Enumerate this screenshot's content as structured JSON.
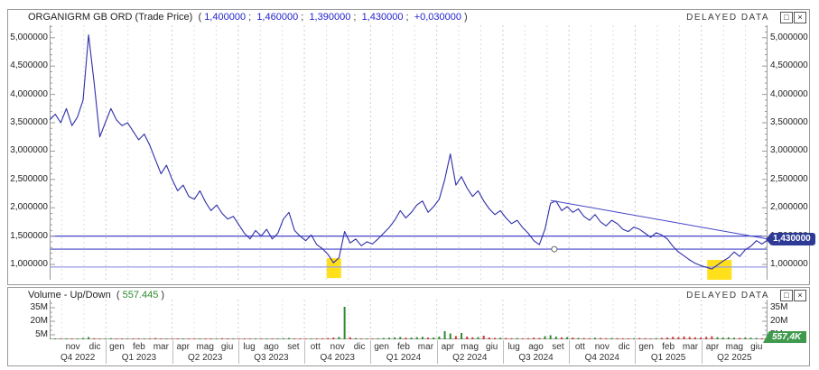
{
  "price_panel": {
    "title": "ORGANIGRM GB ORD (Trade Price)",
    "quote": {
      "open": "(",
      "close": ")",
      "separator": ";",
      "values": [
        "1,400000",
        "1,460000",
        "1,390000",
        "1,430000",
        "+0,030000"
      ]
    },
    "delayed_label": "DELAYED DATA",
    "buttons": {
      "restore": "□",
      "close": "×"
    },
    "y_axis_labels": [
      {
        "value": 5.0,
        "label": "5,000000"
      },
      {
        "value": 4.5,
        "label": "4,500000"
      },
      {
        "value": 4.0,
        "label": "4,000000"
      },
      {
        "value": 3.5,
        "label": "3,500000"
      },
      {
        "value": 3.0,
        "label": "3,000000"
      },
      {
        "value": 2.5,
        "label": "2,500000"
      },
      {
        "value": 2.0,
        "label": "2,000000"
      },
      {
        "value": 1.5,
        "label": "1,500000"
      },
      {
        "value": 1.0,
        "label": "1,000000"
      }
    ],
    "last_price_tag": "1,430000"
  },
  "volume_panel": {
    "title": "Volume - Up/Down",
    "open": "(",
    "value": "557.445",
    "close": ")",
    "delayed_label": "DELAYED DATA",
    "buttons": {
      "restore": "□",
      "close": "×"
    },
    "y_axis_labels": [
      {
        "value": 35,
        "label": "35M"
      },
      {
        "value": 20,
        "label": "20M"
      },
      {
        "value": 5,
        "label": "5M"
      }
    ],
    "last_volume_tag": "557,4K"
  },
  "x_axis": {
    "months": [
      "nov",
      "dic",
      "gen",
      "feb",
      "mar",
      "apr",
      "mag",
      "giu",
      "lug",
      "ago",
      "set",
      "ott",
      "nov",
      "dic",
      "gen",
      "feb",
      "mar",
      "apr",
      "mag",
      "giu",
      "lug",
      "ago",
      "set",
      "ott",
      "nov",
      "dic",
      "gen",
      "feb",
      "mar",
      "apr",
      "mag",
      "giu"
    ],
    "quarters": [
      "Q4 2022",
      "Q1 2023",
      "Q2 2023",
      "Q3 2023",
      "Q4 2023",
      "Q1 2024",
      "Q2 2024",
      "Q3 2024",
      "Q4 2024",
      "Q1 2025",
      "Q2 2025"
    ]
  },
  "chart_data": [
    {
      "type": "line",
      "title": "ORGANIGRM GB ORD Trade Price (millions, weekly approx.)",
      "ylim": [
        0.73,
        5.22
      ],
      "last_price": 1.43,
      "prices_millions": [
        3.55,
        3.65,
        3.5,
        3.75,
        3.45,
        3.6,
        3.9,
        5.05,
        4.2,
        3.25,
        3.5,
        3.75,
        3.55,
        3.45,
        3.5,
        3.35,
        3.2,
        3.3,
        3.1,
        2.85,
        2.6,
        2.75,
        2.5,
        2.3,
        2.4,
        2.2,
        2.15,
        2.3,
        2.1,
        1.95,
        2.05,
        1.9,
        1.8,
        1.85,
        1.7,
        1.55,
        1.45,
        1.6,
        1.5,
        1.62,
        1.45,
        1.55,
        1.8,
        1.92,
        1.6,
        1.5,
        1.42,
        1.52,
        1.35,
        1.28,
        1.18,
        1.03,
        1.12,
        1.58,
        1.38,
        1.45,
        1.33,
        1.4,
        1.36,
        1.45,
        1.55,
        1.65,
        1.78,
        1.95,
        1.82,
        1.92,
        2.05,
        2.12,
        1.92,
        2.02,
        2.15,
        2.5,
        2.95,
        2.4,
        2.55,
        2.35,
        2.2,
        2.3,
        2.12,
        1.98,
        1.88,
        1.95,
        1.82,
        1.72,
        1.78,
        1.65,
        1.55,
        1.42,
        1.35,
        1.62,
        2.08,
        2.12,
        1.95,
        2.02,
        1.92,
        1.98,
        1.85,
        1.78,
        1.88,
        1.75,
        1.68,
        1.78,
        1.72,
        1.62,
        1.58,
        1.66,
        1.62,
        1.55,
        1.48,
        1.56,
        1.52,
        1.45,
        1.32,
        1.22,
        1.15,
        1.08,
        1.02,
        0.98,
        0.95,
        0.92,
        0.99,
        1.06,
        1.12,
        1.22,
        1.14,
        1.26,
        1.32,
        1.42,
        1.36,
        1.43
      ],
      "support_lines": [
        {
          "value": 1.5,
          "color": "#4343c8"
        },
        {
          "value": 1.27,
          "color": "#4343c8"
        },
        {
          "value": 0.955,
          "color": "#9a9ae6"
        }
      ],
      "trendline": {
        "from": {
          "t": 0.698,
          "value": 2.13
        },
        "to": {
          "t": 1.0,
          "value": 1.45
        }
      },
      "marker_circle": {
        "t": 0.703,
        "value": 1.27
      },
      "highlights": [
        {
          "t0": 0.386,
          "t1": 0.406,
          "v0": 0.76,
          "v1": 1.11
        },
        {
          "t0": 0.916,
          "t1": 0.95,
          "v0": 0.73,
          "v1": 1.08
        }
      ]
    },
    {
      "type": "bar",
      "title": "Volume Up/Down (millions)",
      "ylim": [
        0,
        44
      ],
      "last_volume": 0.5574,
      "volumes_millions": [
        0.8,
        0.5,
        0.6,
        1.1,
        0.7,
        0.9,
        1.5,
        2.5,
        1.2,
        0.8,
        0.9,
        1.2,
        0.7,
        0.6,
        0.8,
        0.6,
        1.0,
        0.5,
        1.1,
        1.4,
        0.9,
        0.7,
        0.8,
        1.0,
        0.6,
        0.5,
        0.7,
        0.9,
        0.6,
        0.8,
        0.9,
        1.2,
        0.8,
        0.6,
        0.7,
        1.0,
        0.8,
        0.5,
        0.6,
        0.8,
        0.5,
        0.7,
        1.2,
        1.5,
        0.9,
        0.7,
        0.8,
        0.6,
        0.9,
        1.1,
        1.4,
        2.0,
        2.6,
        36.0,
        2.2,
        1.4,
        1.0,
        0.8,
        1.0,
        1.2,
        1.5,
        1.8,
        2.2,
        2.6,
        1.8,
        2.0,
        2.4,
        2.8,
        1.9,
        2.1,
        3.0,
        9.0,
        6.5,
        3.5,
        7.0,
        3.0,
        2.2,
        2.5,
        4.0,
        2.0,
        1.6,
        1.8,
        1.5,
        1.2,
        1.4,
        1.1,
        1.3,
        1.8,
        1.5,
        3.5,
        4.5,
        3.0,
        2.2,
        2.5,
        2.0,
        1.6,
        1.4,
        1.2,
        1.8,
        1.4,
        1.2,
        1.5,
        1.3,
        1.1,
        0.9,
        1.2,
        1.4,
        1.2,
        1.0,
        1.3,
        1.6,
        2.0,
        2.8,
        2.4,
        3.2,
        2.6,
        2.2,
        2.0,
        2.8,
        3.4,
        2.4,
        2.0,
        2.2,
        1.8,
        1.6,
        2.0,
        1.8,
        1.5,
        1.2,
        0.56
      ]
    }
  ],
  "colors": {
    "price_line": "#2e2ea8",
    "highlight": "#ffe01a",
    "price_tag_bg": "#2d3a96",
    "vol_tag_bg": "#3f9a4d",
    "up": "#2e8b2e",
    "down": "#cc3333",
    "grid": "#dedede",
    "quote_number": "#2222cc",
    "volume_value": "#2e8b2e"
  }
}
